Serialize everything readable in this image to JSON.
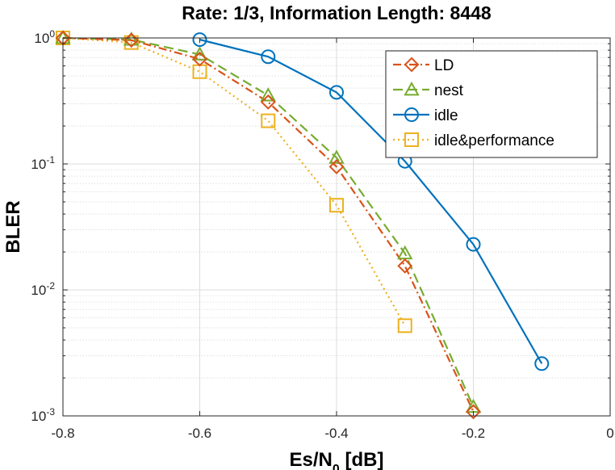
{
  "chart_data": {
    "type": "line",
    "title": "Rate: 1/3, Information Length: 8448",
    "xlabel": "Es/N",
    "xlabel_subscript": "0",
    "xlabel_unit": " [dB]",
    "ylabel": "BLER",
    "xlim": [
      -0.8,
      0
    ],
    "ylim": [
      0.001,
      1
    ],
    "yscale": "log",
    "grid": true,
    "minor_grid": true,
    "legend_position": "top-right",
    "x_ticks": [
      -0.8,
      -0.6,
      -0.4,
      -0.2,
      0
    ],
    "x_tick_labels": [
      "-0.8",
      "-0.6",
      "-0.4",
      "-0.2",
      "0"
    ],
    "y_ticks": [
      {
        "value": 1,
        "base": "10",
        "exp": "0"
      },
      {
        "value": 0.1,
        "base": "10",
        "exp": "-1"
      },
      {
        "value": 0.01,
        "base": "10",
        "exp": "-2"
      },
      {
        "value": 0.001,
        "base": "10",
        "exp": "-3"
      }
    ],
    "series": [
      {
        "name": "LD",
        "color": "#d95319",
        "linestyle": "dash-dot",
        "marker": "diamond",
        "x": [
          -0.8,
          -0.7,
          -0.6,
          -0.5,
          -0.4,
          -0.3,
          -0.2
        ],
        "y": [
          1.0,
          0.96,
          0.68,
          0.31,
          0.095,
          0.0155,
          0.00108
        ]
      },
      {
        "name": "nest",
        "color": "#77ac30",
        "linestyle": "dash",
        "marker": "triangle",
        "x": [
          -0.8,
          -0.7,
          -0.6,
          -0.5,
          -0.4,
          -0.3,
          -0.2
        ],
        "y": [
          1.0,
          0.97,
          0.74,
          0.35,
          0.112,
          0.0195,
          0.00118
        ]
      },
      {
        "name": "idle",
        "color": "#0072bd",
        "linestyle": "solid",
        "marker": "circle",
        "x": [
          -0.6,
          -0.5,
          -0.4,
          -0.3,
          -0.2,
          -0.1
        ],
        "y": [
          0.97,
          0.71,
          0.37,
          0.105,
          0.023,
          0.0026
        ]
      },
      {
        "name": "idle&performance",
        "color": "#edb120",
        "linestyle": "dot",
        "marker": "square",
        "x": [
          -0.8,
          -0.7,
          -0.6,
          -0.5,
          -0.4,
          -0.3
        ],
        "y": [
          1.0,
          0.92,
          0.54,
          0.22,
          0.047,
          0.0052
        ]
      }
    ]
  }
}
